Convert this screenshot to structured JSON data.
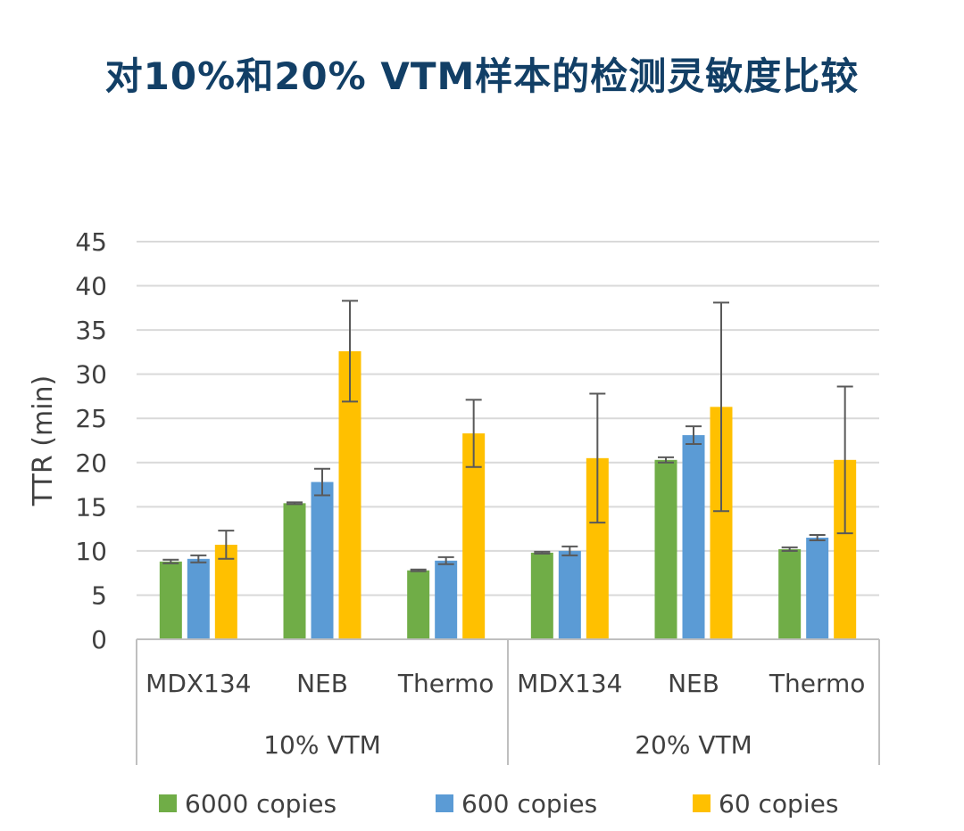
{
  "title": "对10%和20% VTM样本的检测灵敏度比较",
  "chart_data": {
    "type": "bar",
    "title": "对10%和20% VTM样本的检测灵敏度比较",
    "ylabel": "TTR (min)",
    "xlabel": "",
    "ylim": [
      0,
      45
    ],
    "yticks": [
      0,
      5,
      10,
      15,
      20,
      25,
      30,
      35,
      40,
      45
    ],
    "grid": true,
    "legend_position": "bottom",
    "groups": [
      {
        "label": "10% VTM",
        "categories": [
          "MDX134",
          "NEB",
          "Thermo"
        ]
      },
      {
        "label": "20% VTM",
        "categories": [
          "MDX134",
          "NEB",
          "Thermo"
        ]
      }
    ],
    "categories": [
      "MDX134",
      "NEB",
      "Thermo",
      "MDX134",
      "NEB",
      "Thermo"
    ],
    "series": [
      {
        "name": "6000 copies",
        "color": "#70ad47",
        "values": [
          8.8,
          15.4,
          7.8,
          9.8,
          20.3,
          10.2
        ],
        "errors": [
          0.2,
          0.1,
          0.1,
          0.1,
          0.3,
          0.2
        ]
      },
      {
        "name": "600 copies",
        "color": "#5b9bd5",
        "values": [
          9.1,
          17.8,
          8.9,
          10.0,
          23.1,
          11.5
        ],
        "errors": [
          0.4,
          1.5,
          0.4,
          0.5,
          1.0,
          0.3
        ]
      },
      {
        "name": "60 copies",
        "color": "#ffc000",
        "values": [
          10.7,
          32.6,
          23.3,
          20.5,
          26.3,
          20.3
        ],
        "errors": [
          1.6,
          5.7,
          3.8,
          7.3,
          11.8,
          8.3
        ]
      }
    ]
  }
}
